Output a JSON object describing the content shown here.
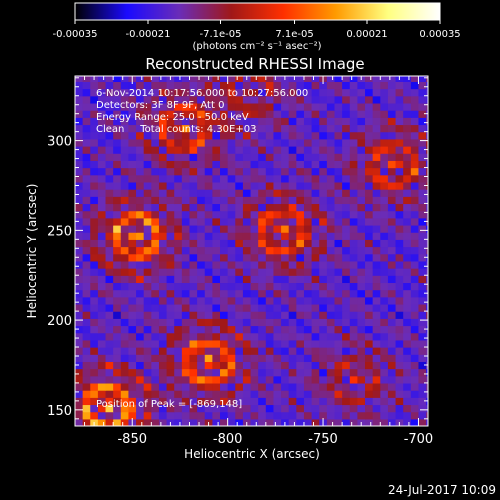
{
  "chart_data": {
    "type": "heatmap",
    "title": "Reconstructed RHESSI Image",
    "xlabel": "Heliocentric X (arcsec)",
    "ylabel": "Heliocentric Y (arcsec)",
    "xlim": [
      -880,
      -695
    ],
    "ylim": [
      141,
      336
    ],
    "x_ticks": [
      "-850",
      "-800",
      "-750",
      "-700"
    ],
    "x_tick_values": [
      -850,
      -800,
      -750,
      -700
    ],
    "y_ticks": [
      "150",
      "200",
      "250",
      "300"
    ],
    "y_tick_values": [
      150,
      200,
      250,
      300
    ],
    "colorbar": {
      "min": -0.00035,
      "max": 0.00035,
      "tick_labels": [
        "-0.00035",
        "-0.00021",
        "-7.1e-05",
        "7.1e-05",
        "0.00021",
        "0.00035"
      ],
      "tick_values": [
        -0.00035,
        -0.00021,
        -7.1e-05,
        7.1e-05,
        0.00021,
        0.00035
      ],
      "unit_label": "(photons cm⁻² s⁻¹ asec⁻²)",
      "colormap": [
        "#000000",
        "#1a0aff",
        "#6a2cb8",
        "#a01818",
        "#ff3000",
        "#ff9a00",
        "#ffff80",
        "#ffffff"
      ]
    },
    "annotations": {
      "time_range": "6-Nov-2014 10:17:56.000 to 10:27:56.000",
      "detectors": "Detectors: 3F 8F 9F, Att 0",
      "energy_range": "Energy Range: 25.0 - 50.0 keV",
      "method": "Clean     Total counts: 4.30E+03",
      "peak": "Position of Peak = [-869,148]"
    },
    "sources": [
      {
        "x": -865,
        "y": 150,
        "strength": 1.0
      },
      {
        "x": -850,
        "y": 245,
        "strength": 0.9
      },
      {
        "x": -812,
        "y": 175,
        "strength": 0.85
      },
      {
        "x": -825,
        "y": 305,
        "strength": 0.7
      },
      {
        "x": -773,
        "y": 248,
        "strength": 0.75
      },
      {
        "x": -715,
        "y": 285,
        "strength": 0.65
      },
      {
        "x": -735,
        "y": 165,
        "strength": 0.45
      },
      {
        "x": -790,
        "y": 325,
        "strength": 0.4
      }
    ]
  },
  "footer": {
    "date": "24-Jul-2017 10:09"
  }
}
